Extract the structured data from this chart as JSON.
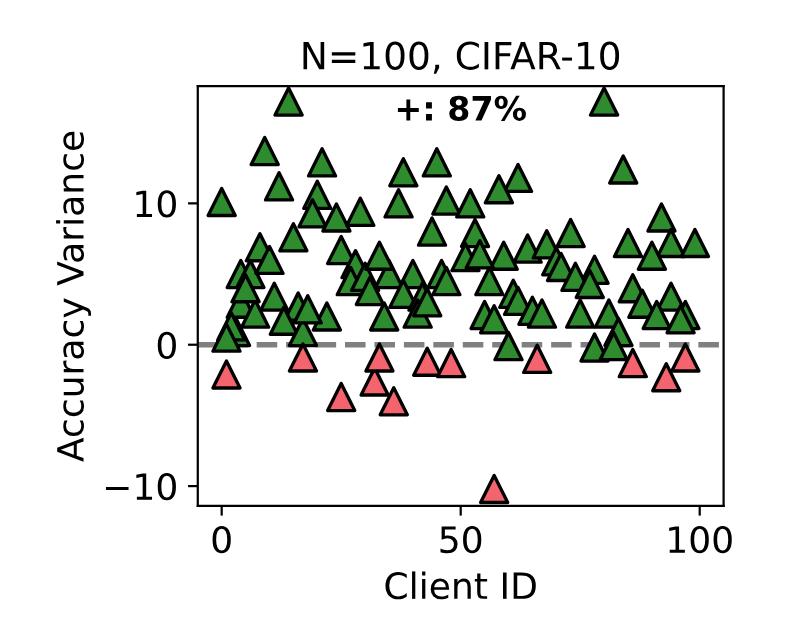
{
  "chart_data": {
    "type": "scatter",
    "title": "N=100, CIFAR-10",
    "xlabel": "Client ID",
    "ylabel": "Accuracy Variance",
    "annotations": [
      "+: 87%"
    ],
    "series": [
      {
        "color": "#2e8b2e",
        "x": [
          14,
          9,
          21,
          12,
          0,
          20,
          38,
          45,
          37,
          47,
          19,
          24,
          29,
          15,
          44,
          8,
          25,
          4,
          6,
          28,
          27,
          30,
          35,
          40,
          46,
          31,
          38,
          42,
          4,
          11,
          16,
          7,
          13,
          22,
          34,
          41,
          3,
          17,
          80,
          62,
          58,
          84,
          52,
          92,
          53,
          73,
          85,
          94,
          99,
          64,
          68,
          90,
          59,
          51,
          70,
          71,
          78,
          47,
          74,
          77,
          56,
          86,
          61,
          62,
          65,
          67,
          55,
          75,
          88,
          94,
          91,
          97,
          81,
          83,
          60,
          78,
          82,
          54,
          2,
          1,
          5,
          10,
          18,
          33,
          43,
          57,
          96
        ],
        "values": [
          17.2,
          13.7,
          12.9,
          11.2,
          10.1,
          10.6,
          12.2,
          12.9,
          10,
          10.2,
          9.3,
          9,
          9.4,
          7.6,
          8,
          6.9,
          6.7,
          5,
          5,
          5.7,
          4.5,
          4.8,
          5,
          5,
          5,
          3.8,
          3.6,
          3.4,
          2.9,
          3.4,
          2.7,
          2.2,
          1.7,
          2,
          2,
          2.2,
          0.9,
          0.9,
          17.2,
          11.8,
          11,
          12.4,
          10,
          9,
          7.9,
          7.9,
          7.2,
          7.2,
          7.2,
          6.8,
          7.1,
          6.3,
          6.3,
          6.2,
          5.9,
          5.5,
          5.3,
          4.5,
          4.8,
          4.3,
          4.5,
          4,
          3.6,
          3.1,
          2.4,
          2.2,
          2.1,
          2.2,
          2.9,
          3.4,
          2.1,
          2.1,
          2.2,
          0.9,
          -0.1,
          -0.2,
          -0.1,
          6.4,
          1.3,
          0.5,
          4,
          6,
          2.5,
          6.3,
          3,
          1.8,
          1.8
        ]
      },
      {
        "color": "#f4646e",
        "x": [
          1,
          17,
          25,
          32,
          33,
          36,
          43,
          48,
          57,
          66,
          86,
          93,
          97
        ],
        "values": [
          -2.1,
          -0.9,
          -3.7,
          -2.6,
          -0.9,
          -4,
          -1.2,
          -1.3,
          -10.2,
          -1,
          -1.3,
          -2.3,
          -0.9
        ]
      }
    ],
    "ref_lines": [
      {
        "axis": "y",
        "value": 0,
        "color": "#808080",
        "line_style": "dashed"
      }
    ],
    "marker": "triangle",
    "xlim": [
      -5,
      105
    ],
    "ylim": [
      -11.4,
      18.3
    ],
    "xticks": [
      0,
      50,
      100
    ],
    "yticks": [
      -10,
      0,
      10
    ],
    "grid": false,
    "legend": false
  }
}
